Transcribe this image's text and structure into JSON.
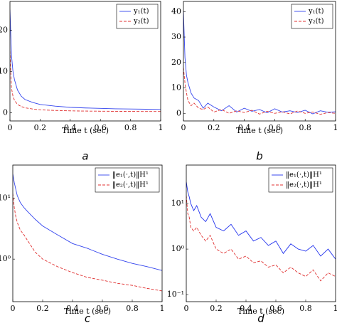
{
  "chart_data": [
    {
      "type": "line",
      "caption": "a",
      "xlabel": "Time t (sec)",
      "legend": "upper right",
      "log_y": false,
      "x": [
        0,
        0.01,
        0.02,
        0.03,
        0.05,
        0.075,
        0.1,
        0.15,
        0.2,
        0.3,
        0.4,
        0.5,
        0.6,
        0.7,
        0.8,
        0.9,
        1
      ],
      "xlim": [
        0,
        1
      ],
      "xticks": [
        0,
        0.2,
        0.4,
        0.6,
        0.8,
        1
      ],
      "ylim": [
        -2,
        27
      ],
      "yticks": [
        0,
        10,
        20
      ],
      "series": [
        {
          "name": "y₁(t)",
          "color": "#3344ee",
          "dash": false,
          "values": [
            25,
            14,
            10,
            8,
            5.5,
            4,
            3.2,
            2.5,
            2,
            1.6,
            1.3,
            1.15,
            1.05,
            0.95,
            0.9,
            0.85,
            0.8
          ]
        },
        {
          "name": "y₂(t)",
          "color": "#e03030",
          "dash": true,
          "values": [
            15,
            6,
            4,
            3,
            2,
            1.5,
            1.2,
            0.9,
            0.7,
            0.55,
            0.45,
            0.4,
            0.37,
            0.34,
            0.32,
            0.3,
            0.3
          ]
        }
      ]
    },
    {
      "type": "line",
      "caption": "b",
      "xlabel": "Time t (sec)",
      "legend": "upper right",
      "log_y": false,
      "x": [
        0,
        0.01,
        0.02,
        0.03,
        0.05,
        0.07,
        0.1,
        0.13,
        0.16,
        0.2,
        0.25,
        0.3,
        0.35,
        0.4,
        0.45,
        0.5,
        0.55,
        0.6,
        0.65,
        0.7,
        0.75,
        0.8,
        0.85,
        0.9,
        0.95,
        1
      ],
      "xlim": [
        0,
        1
      ],
      "xticks": [
        0,
        0.2,
        0.4,
        0.6,
        0.8,
        1
      ],
      "ylim": [
        -3,
        44
      ],
      "yticks": [
        0,
        10,
        20,
        30,
        40
      ],
      "series": [
        {
          "name": "y₁(t)",
          "color": "#3344ee",
          "dash": false,
          "values": [
            40,
            22,
            15,
            12,
            8,
            6,
            5,
            2,
            4,
            2.5,
            1,
            3,
            0.5,
            2,
            0.8,
            1.5,
            0.2,
            1.8,
            0.5,
            1,
            0.3,
            1.2,
            -0.2,
            1,
            0.4,
            0.6
          ]
        },
        {
          "name": "y₂(t)",
          "color": "#e03030",
          "dash": true,
          "values": [
            18,
            12,
            8,
            5,
            3,
            4,
            2,
            1.5,
            2.5,
            0.5,
            1.5,
            0,
            1,
            0.3,
            1.2,
            -0.3,
            0.8,
            0,
            0.6,
            -0.2,
            0.9,
            0,
            0.5,
            -0.4,
            0.3,
            0
          ]
        }
      ]
    },
    {
      "type": "line",
      "caption": "c",
      "xlabel": "Time t (sec)",
      "legend": "upper right",
      "log_y": true,
      "x": [
        0,
        0.01,
        0.02,
        0.03,
        0.05,
        0.075,
        0.1,
        0.15,
        0.2,
        0.3,
        0.4,
        0.5,
        0.6,
        0.7,
        0.8,
        0.9,
        1
      ],
      "xlim": [
        0,
        1
      ],
      "xticks": [
        0,
        0.2,
        0.4,
        0.6,
        0.8,
        1
      ],
      "ylim": [
        0.2,
        35
      ],
      "yticks": [
        {
          "value": 1,
          "label": "10⁰"
        },
        {
          "value": 10,
          "label": "10¹"
        }
      ],
      "series": [
        {
          "name": "‖e₁(·,t)‖H¹",
          "color": "#3344ee",
          "dash": false,
          "values": [
            25,
            18,
            14,
            11,
            8.5,
            7,
            6,
            4.5,
            3.5,
            2.5,
            1.8,
            1.5,
            1.2,
            1,
            0.85,
            0.75,
            0.65
          ]
        },
        {
          "name": "‖e₂(·,t)‖H¹",
          "color": "#e03030",
          "dash": true,
          "values": [
            12,
            7,
            5,
            4,
            3,
            2.5,
            2,
            1.3,
            1,
            0.75,
            0.6,
            0.5,
            0.45,
            0.4,
            0.37,
            0.33,
            0.3
          ]
        }
      ]
    },
    {
      "type": "line",
      "caption": "d",
      "xlabel": "Time t (sec)",
      "legend": "upper right",
      "log_y": true,
      "x": [
        0,
        0.01,
        0.02,
        0.03,
        0.05,
        0.07,
        0.1,
        0.13,
        0.16,
        0.2,
        0.25,
        0.3,
        0.35,
        0.4,
        0.45,
        0.5,
        0.55,
        0.6,
        0.65,
        0.7,
        0.75,
        0.8,
        0.85,
        0.9,
        0.95,
        1
      ],
      "xlim": [
        0,
        1
      ],
      "xticks": [
        0,
        0.2,
        0.4,
        0.6,
        0.8,
        1
      ],
      "ylim": [
        0.07,
        70
      ],
      "yticks": [
        {
          "value": 0.1,
          "label": "10⁻¹"
        },
        {
          "value": 1,
          "label": "10⁰"
        },
        {
          "value": 10,
          "label": "10¹"
        }
      ],
      "series": [
        {
          "name": "‖e₁(·,t)‖H¹",
          "color": "#2233ee",
          "dash": false,
          "values": [
            30,
            18,
            14,
            10,
            7,
            9,
            5,
            4,
            6,
            3,
            2.5,
            3.5,
            2,
            2.5,
            1.5,
            1.8,
            1.2,
            1.5,
            0.8,
            1.3,
            1,
            0.9,
            1.2,
            0.7,
            1,
            0.6
          ]
        },
        {
          "name": "‖e₂(·,t)‖H¹",
          "color": "#e03030",
          "dash": true,
          "values": [
            15,
            6,
            5,
            3,
            2.5,
            3,
            2,
            1.5,
            2,
            1,
            0.8,
            1,
            0.6,
            0.7,
            0.5,
            0.55,
            0.4,
            0.45,
            0.3,
            0.4,
            0.3,
            0.25,
            0.35,
            0.2,
            0.3,
            0.25
          ]
        }
      ]
    }
  ]
}
